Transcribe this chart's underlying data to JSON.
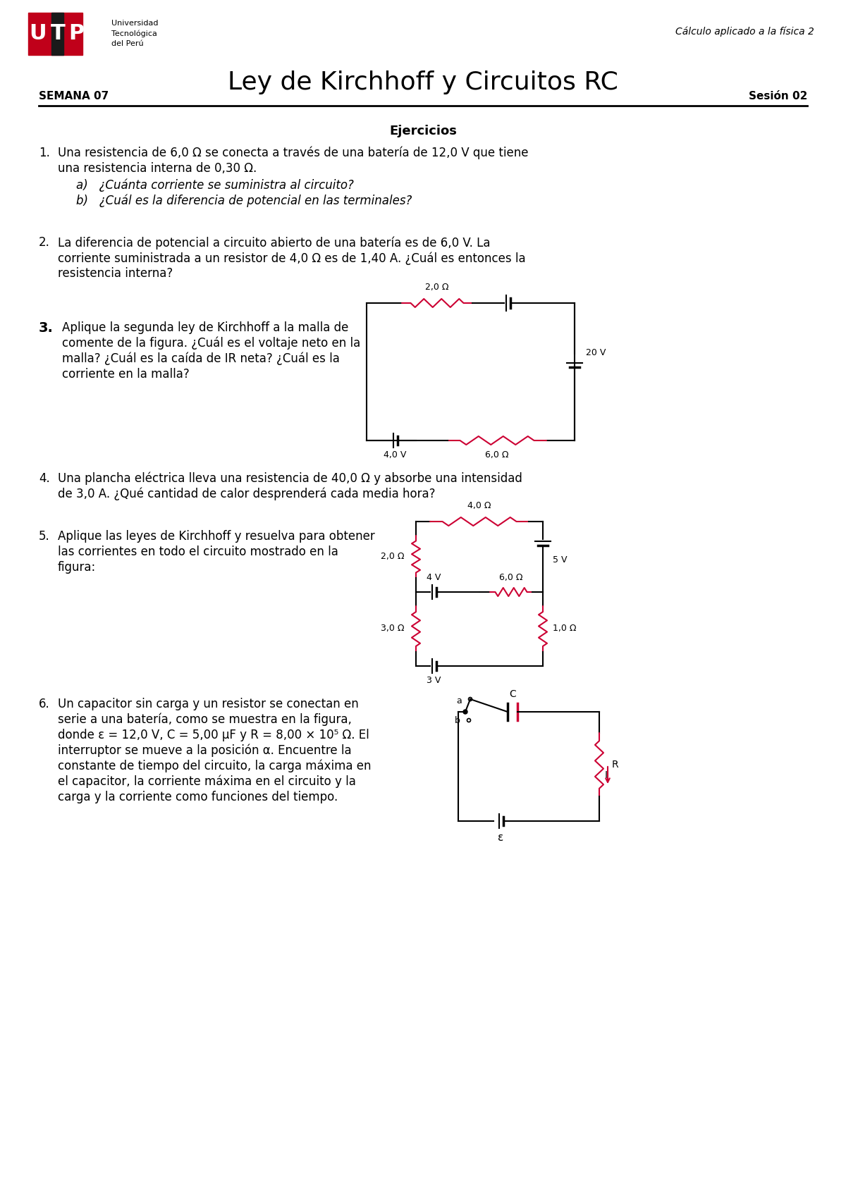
{
  "bg_color": "#ffffff",
  "title": "Ley de Kirchhoff y Circuitos RC",
  "semana": "SEMANA 07",
  "sesion": "Sesión 02",
  "curso": "Cálculo aplicado a la física 2",
  "ejercicios_title": "Ejercicios",
  "logo_red": "#c0001a",
  "logo_black": "#1a1a1a",
  "wire_color": "#000000",
  "resistor_color": "#cc0033",
  "text_color": "#000000",
  "item1_num": "1.",
  "item1_line1": "Una resistencia de 6,0 Ω se conecta a través de una batería de 12,0 V que tiene",
  "item1_line2": "una resistencia interna de 0,30 Ω.",
  "item1_a": "a)   ¿Cuánta corriente se suministra al circuito?",
  "item1_b": "b)   ¿Cuál es la diferencia de potencial en las terminales?",
  "item2_num": "2.",
  "item2_line1": "La diferencia de potencial a circuito abierto de una batería es de 6,0 V. La",
  "item2_line2": "corriente suministrada a un resistor de 4,0 Ω es de 1,40 A. ¿Cuál es entonces la",
  "item2_line3": "resistencia interna?",
  "item3_num": "3.",
  "item3_line1": "Aplique la segunda ley de Kirchhoff a la malla de",
  "item3_line2": "comente de la figura. ¿Cuál es el voltaje neto en la",
  "item3_line3": "malla? ¿Cuál es la caída de IR neta? ¿Cuál es la",
  "item3_line4": "corriente en la malla?",
  "item4_num": "4.",
  "item4_line1": "Una plancha eléctrica lleva una resistencia de 40,0 Ω y absorbe una intensidad",
  "item4_line2": "de 3,0 A. ¿Qué cantidad de calor desprenderá cada media hora?",
  "item5_num": "5.",
  "item5_line1": "Aplique las leyes de Kirchhoff y resuelva para obtener",
  "item5_line2": "las corrientes en todo el circuito mostrado en la",
  "item5_line3": "figura:",
  "item6_num": "6.",
  "item6_line1": "Un capacitor sin carga y un resistor se conectan en",
  "item6_line2": "serie a una batería, como se muestra en la figura,",
  "item6_line3": "donde ε = 12,0 V, C = 5,00 μF y R = 8,00 × 10⁵ Ω. El",
  "item6_line4": "interruptor se mueve a la posición α. Encuentre la",
  "item6_line5": "constante de tiempo del circuito, la carga máxima en",
  "item6_line6": "el capacitor, la corriente máxima en el circuito y la",
  "item6_line7": "carga y la corriente como funciones del tiempo."
}
